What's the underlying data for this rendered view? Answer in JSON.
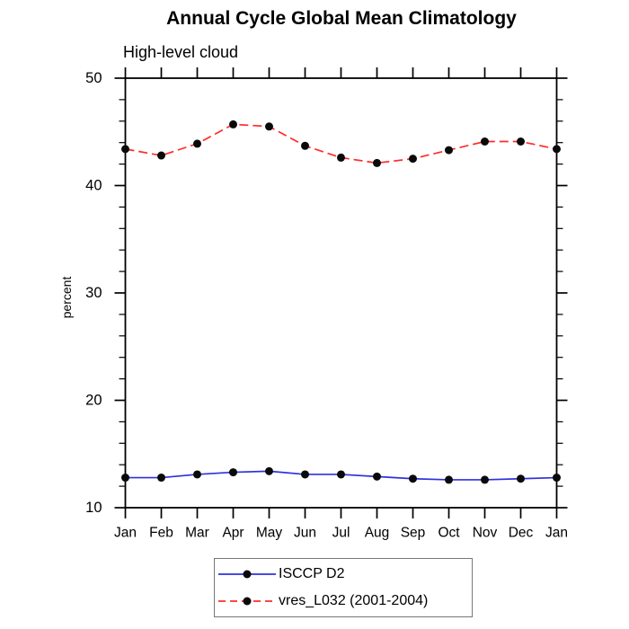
{
  "title": "Annual Cycle Global Mean Climatology",
  "subtitle": "High-level cloud",
  "chart_data": {
    "type": "line",
    "title": "Annual Cycle Global Mean Climatology",
    "subtitle": "High-level cloud",
    "xlabel": "",
    "ylabel": "percent",
    "categories": [
      "Jan",
      "Feb",
      "Mar",
      "Apr",
      "May",
      "Jun",
      "Jul",
      "Aug",
      "Sep",
      "Oct",
      "Nov",
      "Dec",
      "Jan"
    ],
    "ylim": [
      10,
      50
    ],
    "ytick_major": [
      10,
      20,
      30,
      40,
      50
    ],
    "ytick_minor_step": 2,
    "grid": false,
    "legend_position": "bottom-center-boxed",
    "axis_color": "#000000",
    "marker_color": "#0a0a0a",
    "series": [
      {
        "name": "ISCCP D2",
        "color": "#3030dd",
        "line_style": "solid",
        "marker": "filled-circle",
        "values": [
          12.8,
          12.8,
          13.1,
          13.3,
          13.4,
          13.1,
          13.1,
          12.9,
          12.7,
          12.6,
          12.6,
          12.7,
          12.8
        ]
      },
      {
        "name": "vres_L032 (2001-2004)",
        "color": "#ff2b2b",
        "line_style": "dashed",
        "marker": "filled-circle",
        "values": [
          43.4,
          42.8,
          43.9,
          45.7,
          45.5,
          43.7,
          42.6,
          42.1,
          42.5,
          43.3,
          44.1,
          44.1,
          43.4
        ]
      }
    ]
  }
}
